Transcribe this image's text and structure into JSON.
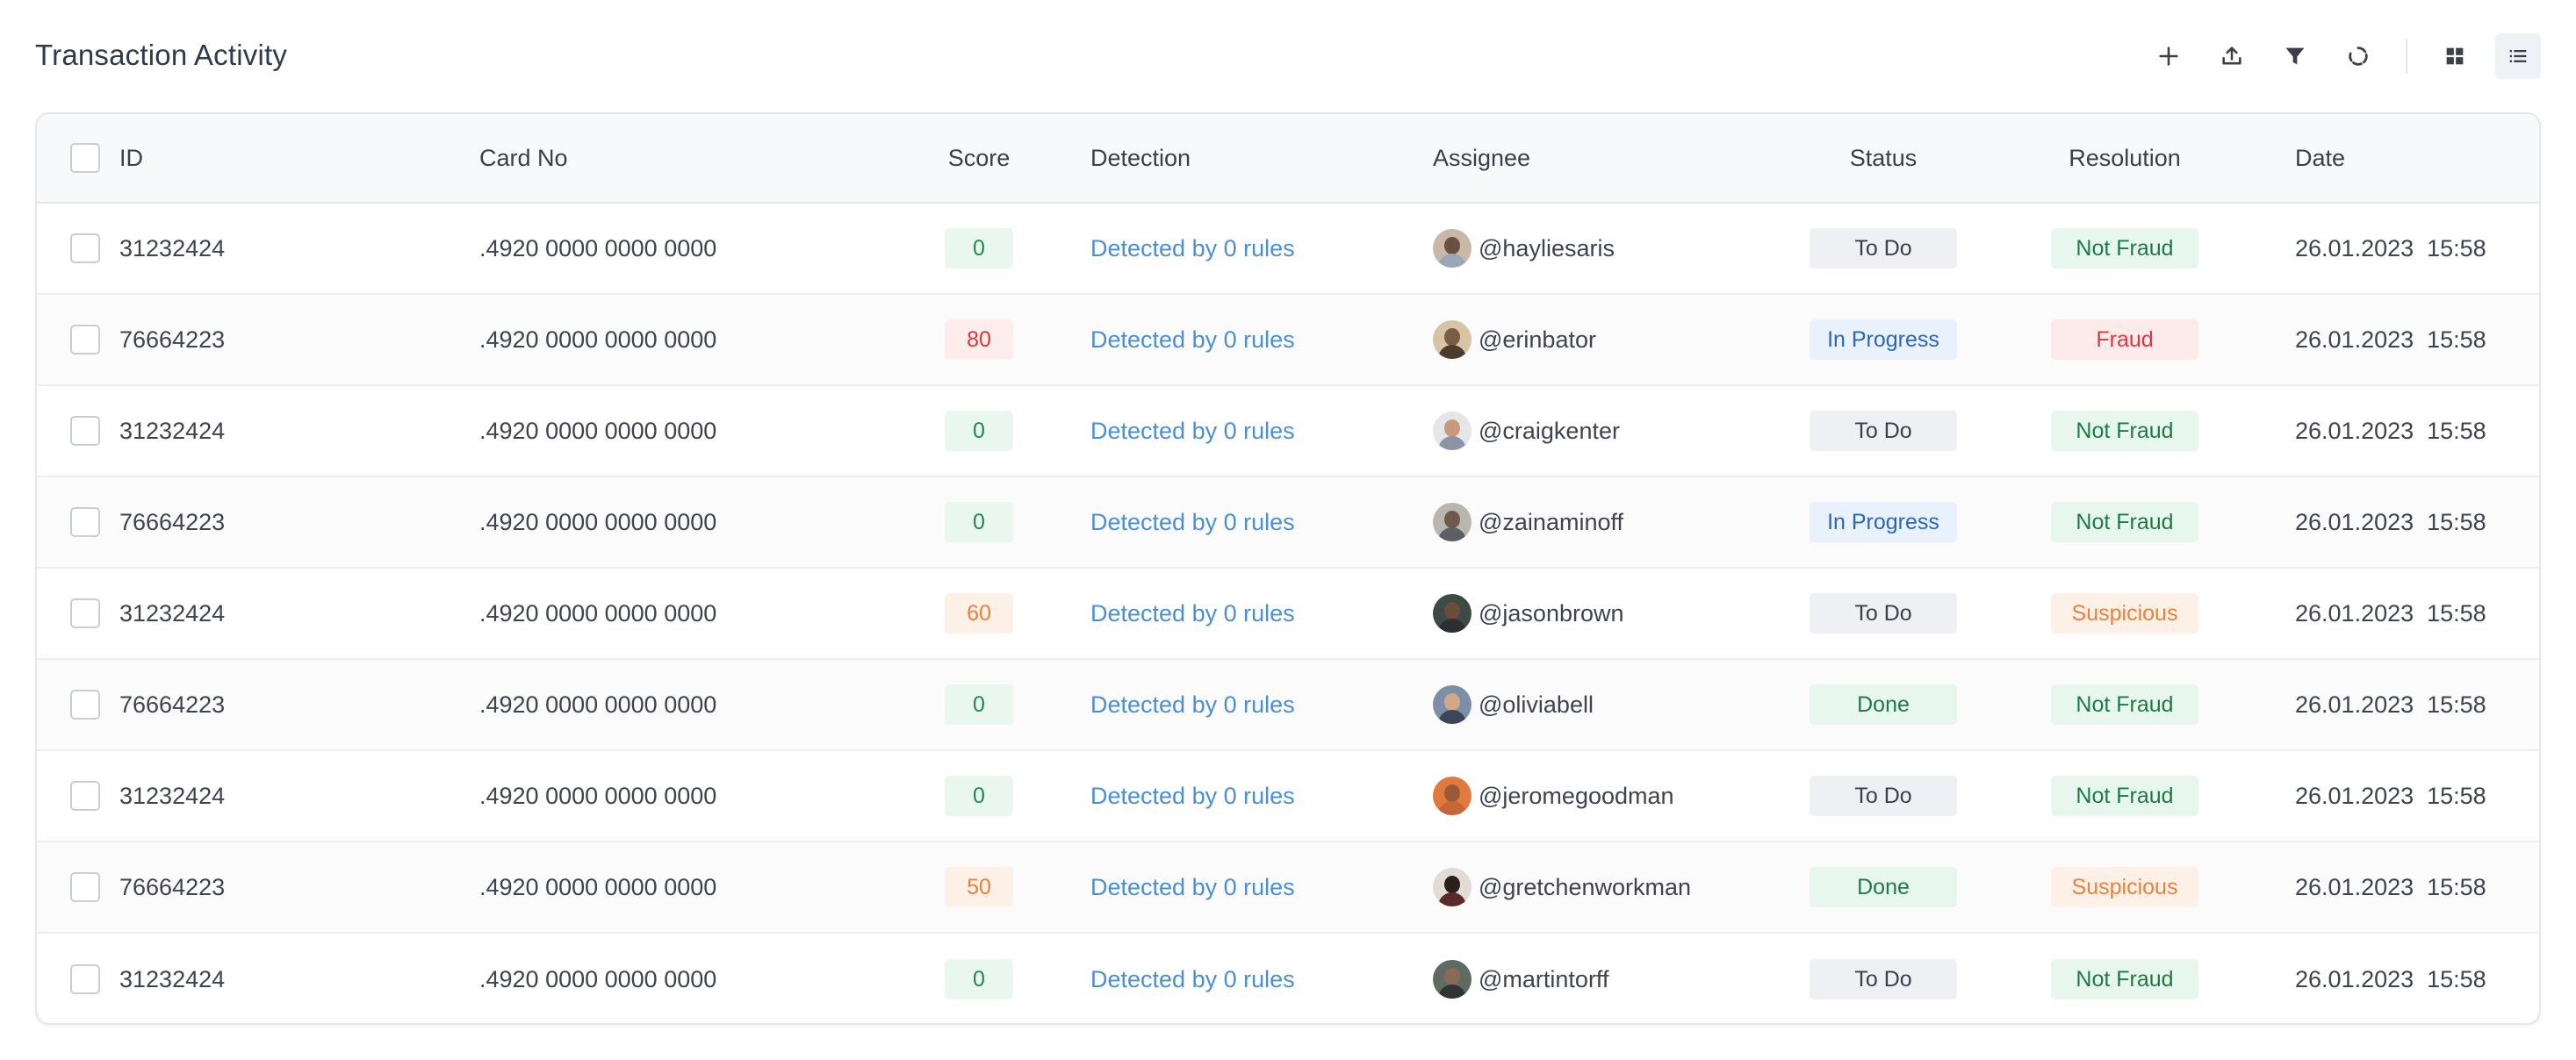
{
  "header": {
    "title": "Transaction Activity",
    "toolbar": [
      {
        "icon": "plus-icon",
        "label": "Add"
      },
      {
        "icon": "upload-icon",
        "label": "Export"
      },
      {
        "icon": "filter-icon",
        "label": "Filter"
      },
      {
        "icon": "refresh-icon",
        "label": "Refresh"
      },
      {
        "icon": "grid-view-icon",
        "label": "Grid view"
      },
      {
        "icon": "list-view-icon",
        "label": "List view",
        "active": true
      }
    ]
  },
  "table": {
    "columns": {
      "id": "ID",
      "card": "Card No",
      "score": "Score",
      "detection": "Detection",
      "assignee": "Assignee",
      "status": "Status",
      "resolution": "Resolution",
      "date": "Date"
    },
    "rows": [
      {
        "id": "31232424",
        "card": ".4920 0000 0000 0000",
        "score": "0",
        "score_level": "low",
        "detection": "Detected by 0 rules",
        "assignee": "@hayliesaris",
        "avatar_colors": [
          "#c9b8a8",
          "#6b4f3f",
          "#9aa7b8"
        ],
        "status": "To Do",
        "resolution": "Not Fraud",
        "date": "26.01.2023  15:58"
      },
      {
        "id": "76664223",
        "card": ".4920 0000 0000 0000",
        "score": "80",
        "score_level": "high",
        "detection": "Detected by 0 rules",
        "assignee": "@erinbator",
        "avatar_colors": [
          "#d8c3a5",
          "#7a5c42",
          "#4b3a30"
        ],
        "status": "In Progress",
        "resolution": "Fraud",
        "date": "26.01.2023  15:58"
      },
      {
        "id": "31232424",
        "card": ".4920 0000 0000 0000",
        "score": "0",
        "score_level": "low",
        "detection": "Detected by 0 rules",
        "assignee": "@craigkenter",
        "avatar_colors": [
          "#e4e6ea",
          "#c89a7a",
          "#8a94a6"
        ],
        "status": "To Do",
        "resolution": "Not Fraud",
        "date": "26.01.2023  15:58"
      },
      {
        "id": "76664223",
        "card": ".4920 0000 0000 0000",
        "score": "0",
        "score_level": "low",
        "detection": "Detected by 0 rules",
        "assignee": "@zainaminoff",
        "avatar_colors": [
          "#b9b6b0",
          "#6e5a4c",
          "#5b5f66"
        ],
        "status": "In Progress",
        "resolution": "Not Fraud",
        "date": "26.01.2023  15:58"
      },
      {
        "id": "31232424",
        "card": ".4920 0000 0000 0000",
        "score": "60",
        "score_level": "mid",
        "detection": "Detected by 0 rules",
        "assignee": "@jasonbrown",
        "avatar_colors": [
          "#3e4a45",
          "#6b4c3a",
          "#2b2f33"
        ],
        "status": "To Do",
        "resolution": "Suspicious",
        "date": "26.01.2023  15:58"
      },
      {
        "id": "76664223",
        "card": ".4920 0000 0000 0000",
        "score": "0",
        "score_level": "low",
        "detection": "Detected by 0 rules",
        "assignee": "@oliviabell",
        "avatar_colors": [
          "#7d8fa6",
          "#d1a98a",
          "#3b4656"
        ],
        "status": "Done",
        "resolution": "Not Fraud",
        "date": "26.01.2023  15:58"
      },
      {
        "id": "31232424",
        "card": ".4920 0000 0000 0000",
        "score": "0",
        "score_level": "low",
        "detection": "Detected by 0 rules",
        "assignee": "@jeromegoodman",
        "avatar_colors": [
          "#e07a3e",
          "#9b5a36",
          "#c4663a"
        ],
        "status": "To Do",
        "resolution": "Not Fraud",
        "date": "26.01.2023  15:58"
      },
      {
        "id": "76664223",
        "card": ".4920 0000 0000 0000",
        "score": "50",
        "score_level": "mid",
        "detection": "Detected by 0 rules",
        "assignee": "@gretchenworkman",
        "avatar_colors": [
          "#e3dcd6",
          "#2a1f1c",
          "#5a2a2a"
        ],
        "status": "Done",
        "resolution": "Suspicious",
        "date": "26.01.2023  15:58"
      },
      {
        "id": "31232424",
        "card": ".4920 0000 0000 0000",
        "score": "0",
        "score_level": "low",
        "detection": "Detected by 0 rules",
        "assignee": "@martintorff",
        "avatar_colors": [
          "#5d6b62",
          "#8a6a55",
          "#2f3434"
        ],
        "status": "To Do",
        "resolution": "Not Fraud",
        "date": "26.01.2023  15:58"
      }
    ]
  },
  "colors": {
    "score_low_bg": "#eaf7ef",
    "score_low_fg": "#1f8a4c",
    "score_high_bg": "#fdecec",
    "score_high_fg": "#d63b3b",
    "score_mid_bg": "#fdf1e7",
    "score_mid_fg": "#e8823a",
    "status_todo_bg": "#eff0f3",
    "status_todo_fg": "#3a3f4b",
    "status_progress_bg": "#e8f1fc",
    "status_progress_fg": "#2a68b6",
    "status_done_bg": "#e7f7ee",
    "status_done_fg": "#1d7a45",
    "res_notfraud_bg": "#e7f7ee",
    "res_notfraud_fg": "#1d7a45",
    "res_fraud_bg": "#fdeaea",
    "res_fraud_fg": "#d63b3b",
    "res_suspicious_bg": "#fdf1e7",
    "res_suspicious_fg": "#e8823a",
    "link": "#4a8fd6"
  }
}
